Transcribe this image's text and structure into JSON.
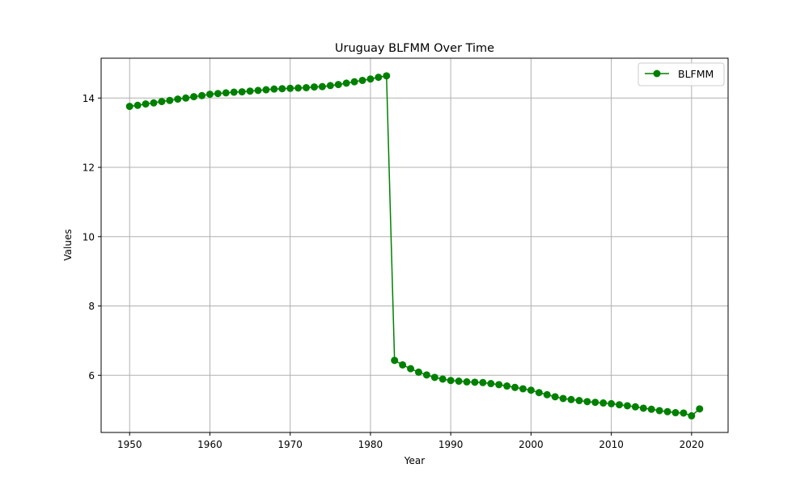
{
  "chart_data": {
    "type": "line",
    "title": "Uruguay BLFMM Over Time",
    "xlabel": "Year",
    "ylabel": "Values",
    "xlim": [
      1946.45,
      2024.55
    ],
    "ylim": [
      4.35,
      15.15
    ],
    "xticks": [
      1950,
      1960,
      1970,
      1980,
      1990,
      2000,
      2010,
      2020
    ],
    "yticks": [
      6,
      8,
      10,
      12,
      14
    ],
    "grid": true,
    "legend_position": "top-right",
    "colors": {
      "series": "#008000",
      "grid": "#b0b0b0",
      "axis": "#000000"
    },
    "series": [
      {
        "name": "BLFMM",
        "marker": "circle",
        "x": [
          1950,
          1951,
          1952,
          1953,
          1954,
          1955,
          1956,
          1957,
          1958,
          1959,
          1960,
          1961,
          1962,
          1963,
          1964,
          1965,
          1966,
          1967,
          1968,
          1969,
          1970,
          1971,
          1972,
          1973,
          1974,
          1975,
          1976,
          1977,
          1978,
          1979,
          1980,
          1981,
          1982,
          1983,
          1984,
          1985,
          1986,
          1987,
          1988,
          1989,
          1990,
          1991,
          1992,
          1993,
          1994,
          1995,
          1996,
          1997,
          1998,
          1999,
          2000,
          2001,
          2002,
          2003,
          2004,
          2005,
          2006,
          2007,
          2008,
          2009,
          2010,
          2011,
          2012,
          2013,
          2014,
          2015,
          2016,
          2017,
          2018,
          2019,
          2020,
          2021
        ],
        "values": [
          13.76,
          13.79,
          13.83,
          13.86,
          13.9,
          13.93,
          13.97,
          14.0,
          14.04,
          14.07,
          14.11,
          14.13,
          14.15,
          14.17,
          14.18,
          14.2,
          14.22,
          14.24,
          14.26,
          14.27,
          14.28,
          14.29,
          14.3,
          14.32,
          14.33,
          14.36,
          14.39,
          14.43,
          14.47,
          14.51,
          14.55,
          14.6,
          14.64,
          6.43,
          6.3,
          6.19,
          6.09,
          6.01,
          5.94,
          5.89,
          5.85,
          5.83,
          5.81,
          5.8,
          5.79,
          5.76,
          5.73,
          5.69,
          5.65,
          5.61,
          5.57,
          5.5,
          5.44,
          5.38,
          5.33,
          5.3,
          5.27,
          5.24,
          5.22,
          5.2,
          5.18,
          5.15,
          5.12,
          5.09,
          5.05,
          5.02,
          4.98,
          4.95,
          4.92,
          4.91,
          4.83,
          5.03
        ]
      }
    ]
  }
}
